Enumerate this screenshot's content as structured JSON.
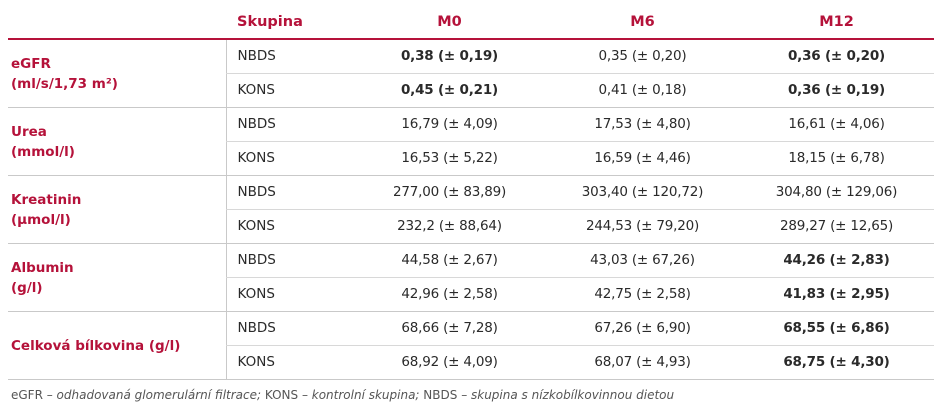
{
  "header": {
    "group": "Skupina",
    "m0": "M0",
    "m6": "M6",
    "m12": "M12"
  },
  "rows": [
    {
      "param_line1": "eGFR",
      "param_line2": "(ml/s/1,73 m²)",
      "r1": {
        "group": "NBDS",
        "m0": "0,38 (± 0,19)",
        "m6": "0,35 (± 0,20)",
        "m12": "0,36 (± 0,20)"
      },
      "r2": {
        "group": "KONS",
        "m0": "0,45 (± 0,21)",
        "m6": "0,41 (± 0,18)",
        "m12": "0,36 (± 0,19)"
      }
    },
    {
      "param_line1": "Urea",
      "param_line2": "(mmol/l)",
      "r1": {
        "group": "NBDS",
        "m0": "16,79 (± 4,09)",
        "m6": "17,53 (± 4,80)",
        "m12": "16,61 (± 4,06)"
      },
      "r2": {
        "group": "KONS",
        "m0": "16,53 (± 5,22)",
        "m6": "16,59 (± 4,46)",
        "m12": "18,15 (± 6,78)"
      }
    },
    {
      "param_line1": "Kreatinin",
      "param_line2": "(µmol/l)",
      "r1": {
        "group": "NBDS",
        "m0": "277,00 (± 83,89)",
        "m6": "303,40 (± 120,72)",
        "m12": "304,80 (± 129,06)"
      },
      "r2": {
        "group": "KONS",
        "m0": "232,2 (± 88,64)",
        "m6": "244,53 (± 79,20)",
        "m12": "289,27 (± 12,65)"
      }
    },
    {
      "param_line1": "Albumin",
      "param_line2": "(g/l)",
      "r1": {
        "group": "NBDS",
        "m0": "44,58 (± 2,67)",
        "m6": "43,03 (± 67,26)",
        "m12": "44,26 (± 2,83)"
      },
      "r2": {
        "group": "KONS",
        "m0": "42,96 (± 2,58)",
        "m6": "42,75 (± 2,58)",
        "m12": "41,83 (± 2,95)"
      }
    },
    {
      "param_line1": "Celková bílkovina (g/l)",
      "param_line2": "",
      "r1": {
        "group": "NBDS",
        "m0": "68,66 (± 7,28)",
        "m6": "67,26 (± 6,90)",
        "m12": "68,55 (± 6,86)"
      },
      "r2": {
        "group": "KONS",
        "m0": "68,92 (± 4,09)",
        "m6": "68,07 (± 4,93)",
        "m12": "68,75 (± 4,30)"
      }
    }
  ],
  "footnote": {
    "a1": "eGFR",
    "d1": " – odhadovaná glomerulární filtrace; ",
    "a2": "KONS",
    "d2": " – kontrolní skupina; ",
    "a3": "NBDS",
    "d3": " – skupina s nízkobílkovinnou dietou"
  },
  "colors": {
    "accent": "#b5123a",
    "text": "#2a2a2a",
    "rule": "#c9c9c9"
  }
}
